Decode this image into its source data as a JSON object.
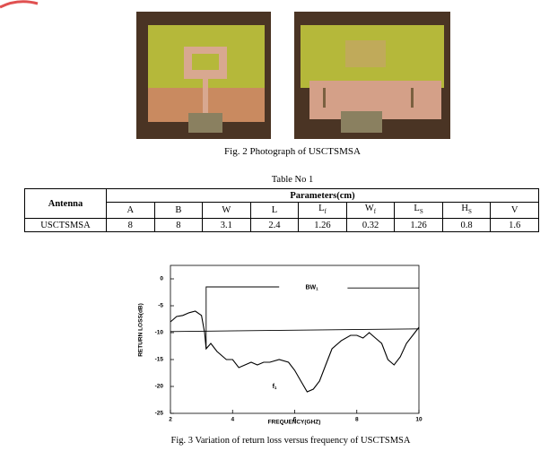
{
  "figure2": {
    "caption": "Fig. 2 Photograph of USCTSMSA"
  },
  "table": {
    "title": "Table No 1",
    "header": "Antenna",
    "group_header": "Parameters(cm)",
    "columns": [
      {
        "main": "A"
      },
      {
        "main": "B"
      },
      {
        "main": "W"
      },
      {
        "main": "L"
      },
      {
        "main": "L",
        "sub": "f"
      },
      {
        "main": "W",
        "sub": "f"
      },
      {
        "main": "L",
        "sub": "S"
      },
      {
        "main": "H",
        "sub": "S"
      },
      {
        "main": "V"
      }
    ],
    "rows": [
      [
        "USCTSMSA",
        "8",
        "8",
        "3.1",
        "2.4",
        "1.26",
        "0.32",
        "1.26",
        "0.8",
        "1.6"
      ]
    ]
  },
  "chart_data": {
    "type": "line",
    "caption": "Fig. 3  Variation of return loss versus frequency of USCTSMSA",
    "x_label": "FREQUENCY(GHZ)",
    "y_label": "RETURN LOSS(dB)",
    "xlim": [
      2,
      10
    ],
    "ylim": [
      -25,
      2.5
    ],
    "xticks": [
      2,
      4,
      6,
      8,
      10
    ],
    "yticks": [
      0,
      -5,
      -10,
      -15,
      -20,
      -25
    ],
    "annotations": [
      {
        "text": "BW",
        "sub": "1"
      },
      {
        "text": "f",
        "sub": "1"
      }
    ],
    "series": [
      {
        "color": "#000000",
        "x": [
          2.0,
          2.2,
          2.4,
          2.6,
          2.8,
          3.0,
          3.1,
          3.15,
          3.3,
          3.5,
          3.8,
          4.0,
          4.2,
          4.4,
          4.6,
          4.8,
          5.0,
          5.2,
          5.5,
          5.8,
          6.0,
          6.2,
          6.4,
          6.6,
          6.8,
          7.0,
          7.2,
          7.5,
          7.8,
          8.0,
          8.2,
          8.4,
          8.6,
          8.8,
          9.0,
          9.2,
          9.4,
          9.6,
          9.8,
          10.0
        ],
        "values": [
          -8.0,
          -7.0,
          -6.8,
          -6.3,
          -6.0,
          -6.8,
          -10,
          -13,
          -12,
          -13.5,
          -15,
          -15,
          -16.5,
          -16,
          -15.5,
          -16,
          -15.5,
          -15.5,
          -15,
          -15.5,
          -17,
          -19,
          -21,
          -20.5,
          -19,
          -16,
          -13,
          -11.5,
          -10.5,
          -10.5,
          -11,
          -10,
          -11,
          -12,
          -15,
          -16,
          -14.5,
          -12,
          -10.5,
          -9
        ]
      },
      {
        "color": "#000000",
        "x": [
          2,
          10
        ],
        "values": [
          -9.8,
          -9.3
        ]
      },
      {
        "color": "#000000",
        "x": [
          3.15,
          3.15,
          5.5,
          6.0,
          7.7,
          10
        ],
        "values": [
          -13,
          -1.5,
          -1.5,
          null,
          -1.7,
          -1.7
        ]
      }
    ]
  }
}
